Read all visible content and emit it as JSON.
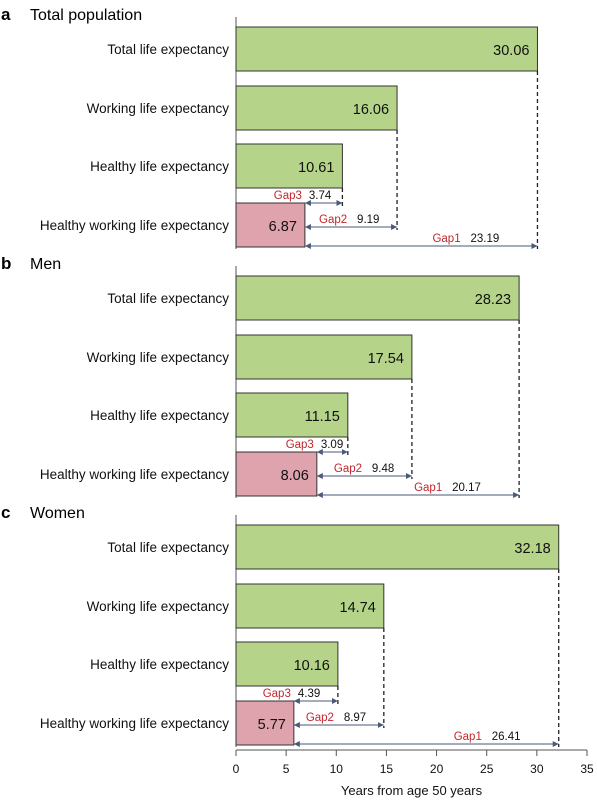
{
  "chart_data": {
    "type": "bar",
    "orientation": "horizontal",
    "xlabel": "Years from age 50 years",
    "xlim": [
      0,
      35
    ],
    "xticks": [
      0,
      5,
      10,
      15,
      20,
      25,
      30,
      35
    ],
    "colors": {
      "main_bar": "#b5d48a",
      "hwle_bar": "#dea3ad",
      "gap_label": "#c0272d",
      "arrow": "#4a5a78"
    },
    "categories": [
      "Total life expectancy",
      "Working life expectancy",
      "Healthy life expectancy",
      "Healthy working life expectancy"
    ],
    "panels": [
      {
        "letter": "a",
        "title": "Total population",
        "values": [
          30.06,
          16.06,
          10.61,
          6.87
        ],
        "value_labels": [
          "30.06",
          "16.06",
          "10.61",
          "6.87"
        ],
        "gaps": [
          {
            "name": "Gap3",
            "value": "3.74",
            "to": 10.61
          },
          {
            "name": "Gap2",
            "value": "9.19",
            "to": 16.06
          },
          {
            "name": "Gap1",
            "value": "23.19",
            "to": 30.06
          }
        ]
      },
      {
        "letter": "b",
        "title": "Men",
        "values": [
          28.23,
          17.54,
          11.15,
          8.06
        ],
        "value_labels": [
          "28.23",
          "17.54",
          "11.15",
          "8.06"
        ],
        "gaps": [
          {
            "name": "Gap3",
            "value": "3.09",
            "to": 11.15
          },
          {
            "name": "Gap2",
            "value": "9.48",
            "to": 17.54
          },
          {
            "name": "Gap1",
            "value": "20.17",
            "to": 28.23
          }
        ]
      },
      {
        "letter": "c",
        "title": "Women",
        "values": [
          32.18,
          14.74,
          10.16,
          5.77
        ],
        "value_labels": [
          "32.18",
          "14.74",
          "10.16",
          "5.77"
        ],
        "gaps": [
          {
            "name": "Gap3",
            "value": "4.39",
            "to": 10.16
          },
          {
            "name": "Gap2",
            "value": "8.97",
            "to": 14.74
          },
          {
            "name": "Gap1",
            "value": "26.41",
            "to": 32.18
          }
        ]
      }
    ]
  }
}
